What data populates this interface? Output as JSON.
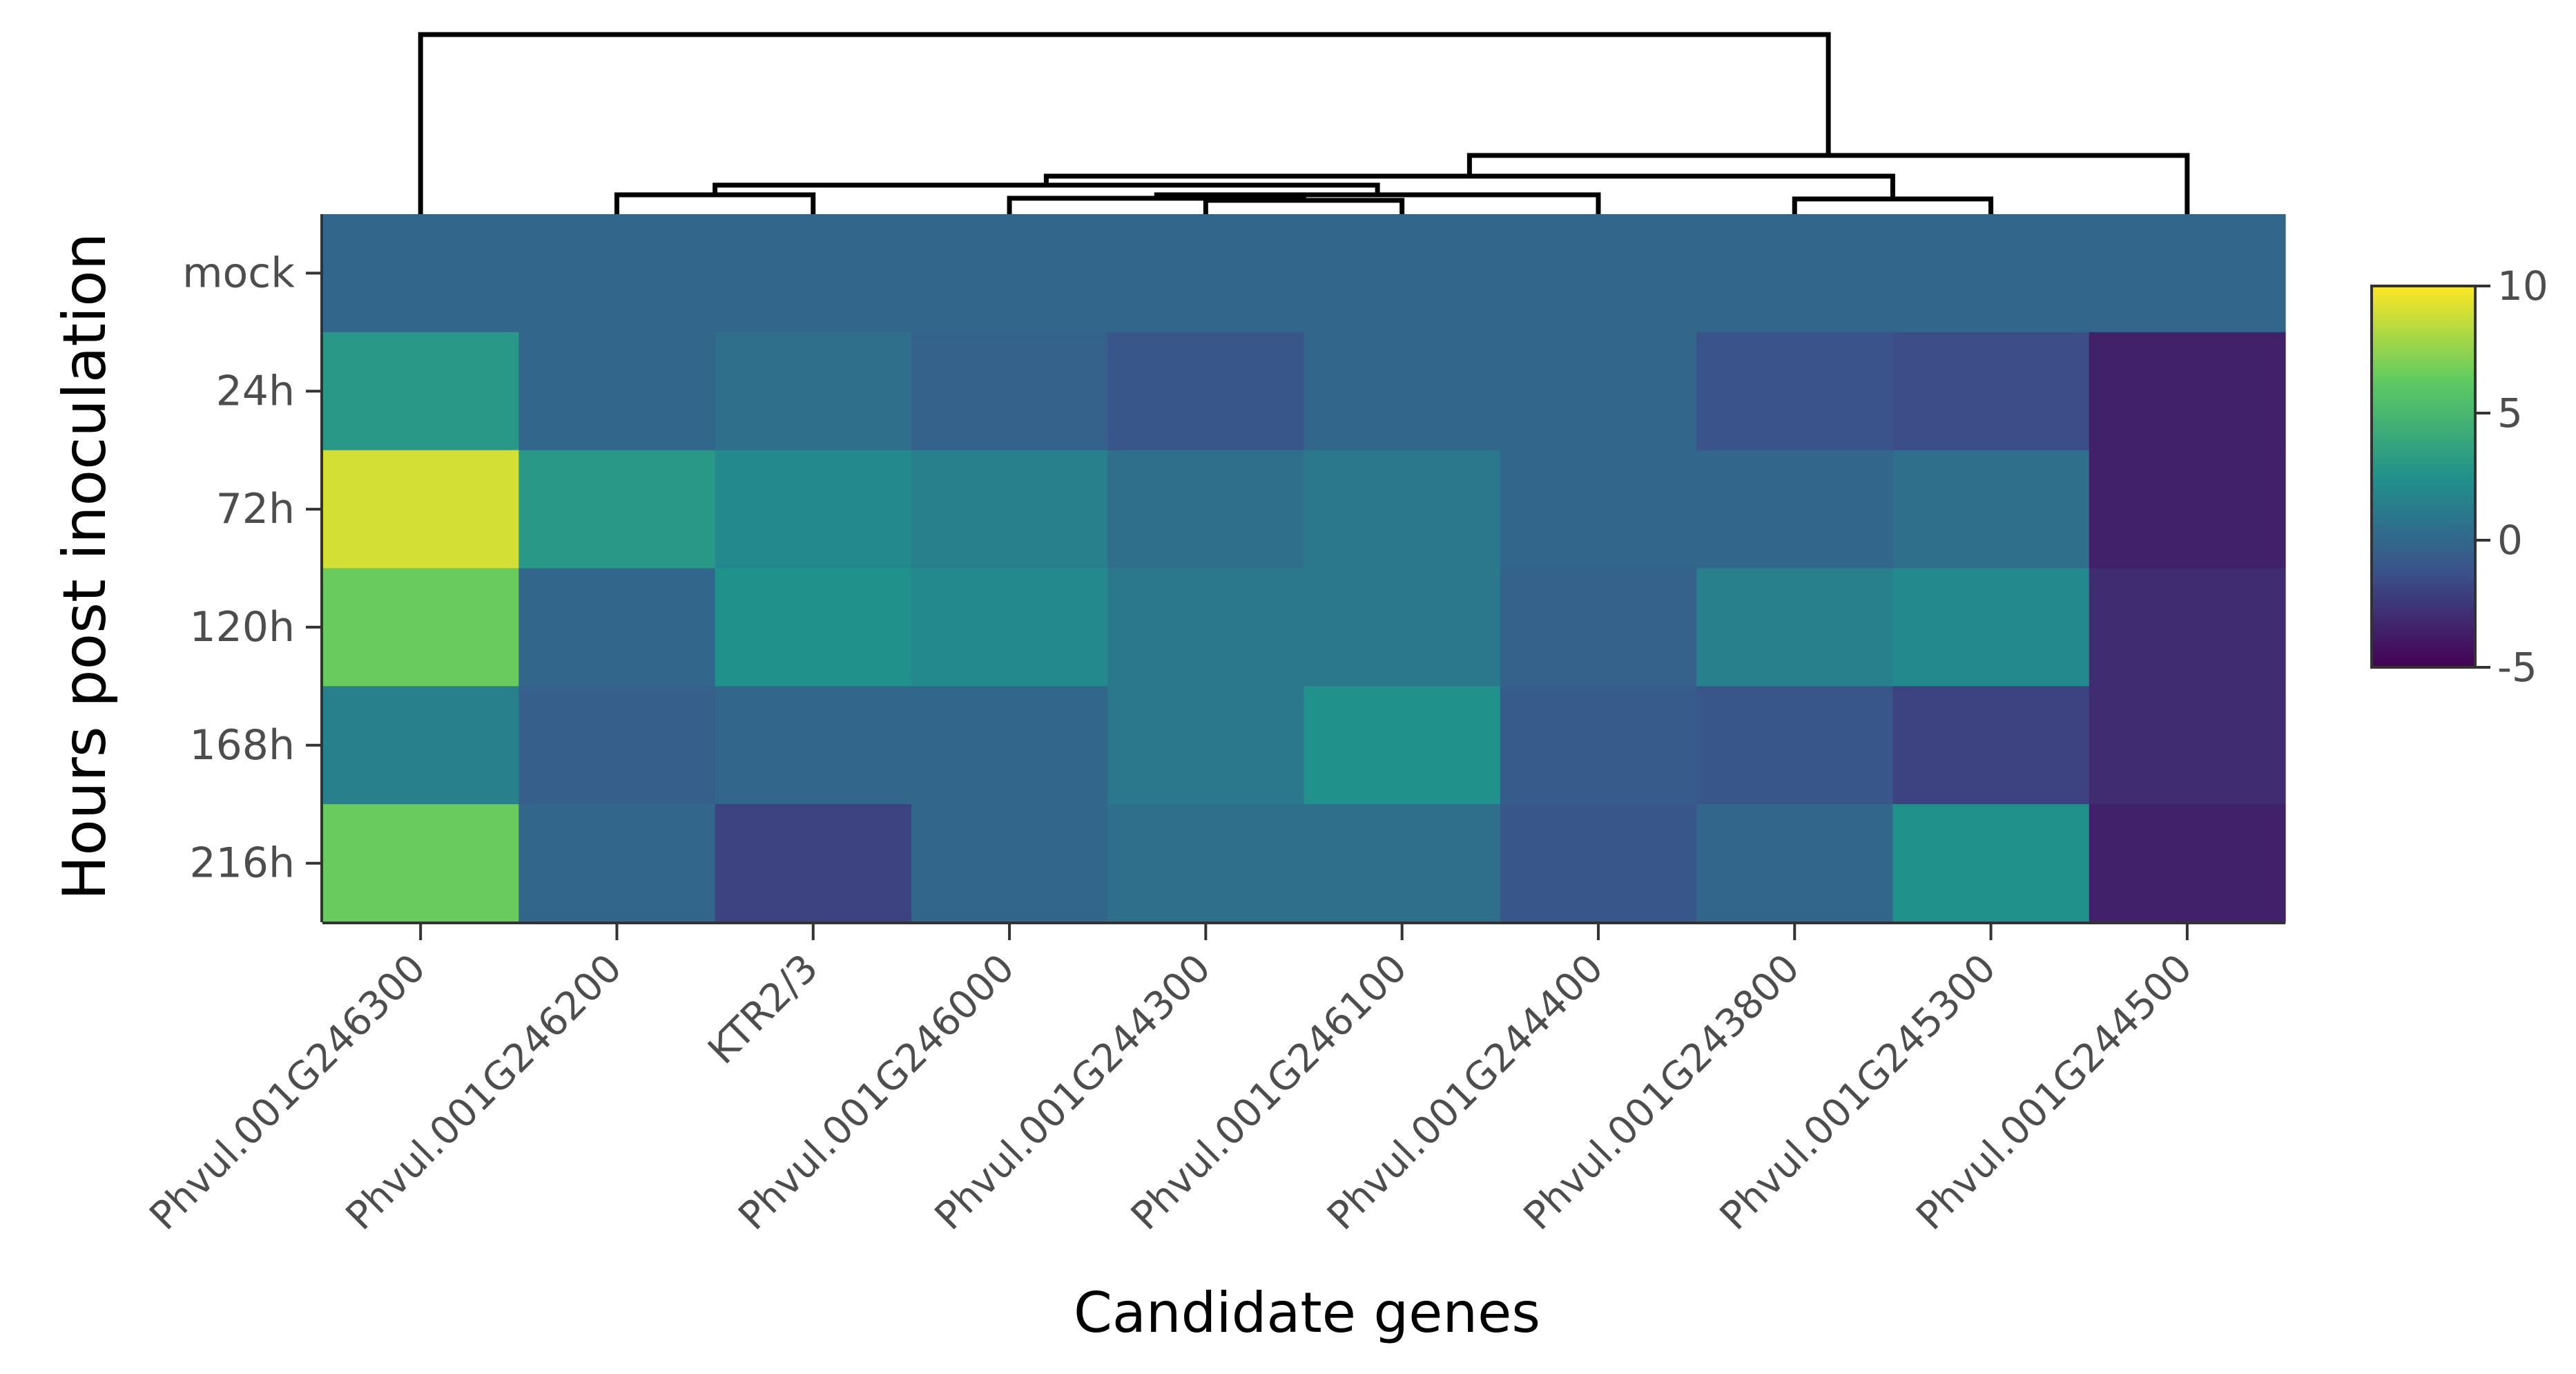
{
  "chart_data": {
    "type": "heatmap",
    "title": "",
    "xlabel": "Candidate genes",
    "ylabel": "Hours post inoculation",
    "x": [
      "Phvul.001G246300",
      "Phvul.001G246200",
      "KTR2/3",
      "Phvul.001G246000",
      "Phvul.001G244300",
      "Phvul.001G246100",
      "Phvul.001G244400",
      "Phvul.001G243800",
      "Phvul.001G245300",
      "Phvul.001G244500"
    ],
    "y": [
      "mock",
      "24h",
      "72h",
      "120h",
      "168h",
      "216h"
    ],
    "values": [
      [
        0,
        0,
        0,
        0,
        0,
        0,
        0,
        0,
        0,
        0
      ],
      [
        3,
        0,
        0.5,
        -0.3,
        -1,
        0,
        0,
        -1.2,
        -1.5,
        -3.5
      ],
      [
        9,
        3,
        2,
        1.5,
        0.5,
        1,
        0,
        0,
        0.5,
        -3.5
      ],
      [
        6.5,
        0,
        2.5,
        2,
        1,
        1,
        -0.3,
        1.5,
        2,
        -3
      ],
      [
        1.5,
        -0.5,
        0,
        0,
        1,
        2.5,
        -0.7,
        -1,
        -2,
        -3
      ],
      [
        6.5,
        0,
        -2,
        0,
        0.5,
        0.5,
        -1,
        0,
        2.5,
        -3.5
      ]
    ],
    "colorbar": {
      "min": -5,
      "max": 10,
      "ticks": [
        "10",
        "5",
        "0",
        "-5"
      ],
      "tick_values": [
        10,
        5,
        0,
        -5
      ],
      "colors": [
        "#440154",
        "#3b528b",
        "#21918c",
        "#5ec962",
        "#fde725"
      ],
      "placement": "right"
    },
    "dendrogram": {
      "placement": "top",
      "merges": [
        [
          "Phvul.001G244300",
          "Phvul.001G246100"
        ],
        [
          "Phvul.001G246000",
          "Phvul.001G244300 + Phvul.001G246100"
        ],
        [
          "Phvul.001G246000 + Phvul.001G244300 + Phvul.001G246100",
          "Phvul.001G244400"
        ],
        [
          "Phvul.001G246200",
          "KTR2/3"
        ],
        [
          "Phvul.001G246200 + KTR2/3",
          "Phvul.001G246000 + Phvul.001G244300 + Phvul.001G246100 + Phvul.001G244400"
        ],
        [
          "Phvul.001G243800",
          "Phvul.001G245300"
        ],
        [
          "Phvul.001G246200 … Phvul.001G244400",
          "Phvul.001G243800 + Phvul.001G245300"
        ],
        [
          "Phvul.001G246200 … Phvul.001G245300",
          "Phvul.001G244500"
        ],
        [
          "Phvul.001G246300",
          "Phvul.001G246200 … Phvul.001G244500"
        ]
      ]
    },
    "grid": false,
    "legend": "colorbar top-right"
  }
}
